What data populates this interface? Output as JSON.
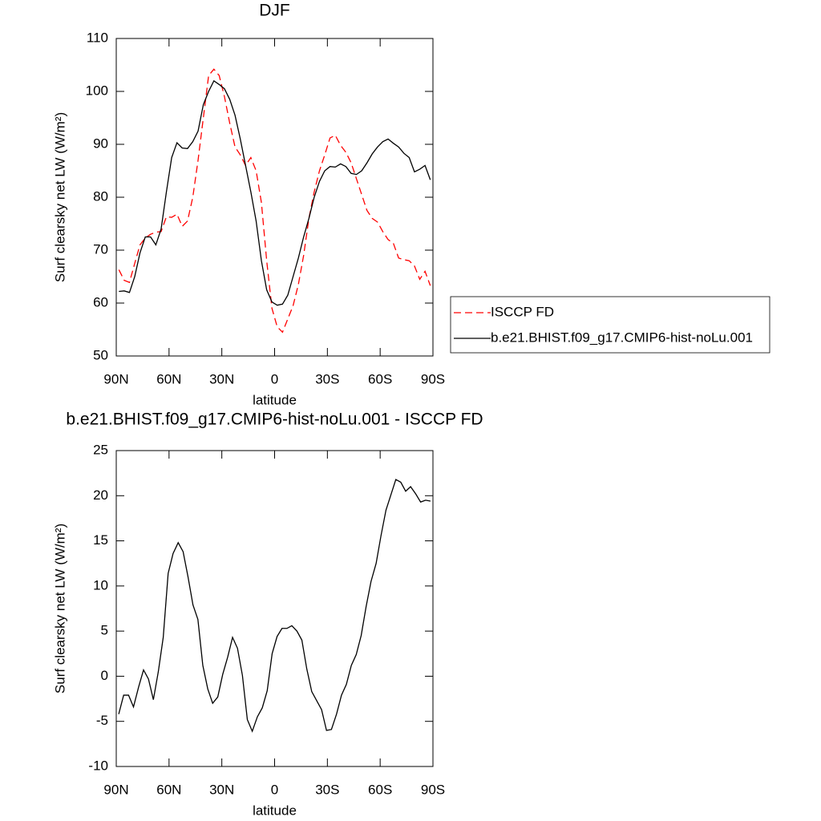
{
  "chart_data": [
    {
      "type": "line",
      "title": "DJF",
      "xlabel": "latitude",
      "ylabel": "Surf clearsky net LW (W/m²)",
      "x": [
        88.5,
        85.5,
        82.5,
        79.5,
        76.5,
        73.5,
        70.5,
        67.5,
        64.5,
        61.5,
        58.5,
        55.5,
        52.5,
        49.5,
        46.5,
        43.5,
        40.5,
        37.5,
        34.5,
        31.5,
        28.5,
        25.5,
        22.5,
        19.5,
        16.5,
        13.5,
        10.5,
        7.5,
        4.5,
        1.5,
        -1.5,
        -4.5,
        -7.5,
        -10.5,
        -13.5,
        -16.5,
        -19.5,
        -22.5,
        -25.5,
        -28.5,
        -31.5,
        -34.5,
        -37.5,
        -40.5,
        -43.5,
        -46.5,
        -49.5,
        -52.5,
        -55.5,
        -58.5,
        -61.5,
        -64.5,
        -67.5,
        -70.5,
        -73.5,
        -76.5,
        -79.5,
        -82.5,
        -85.5,
        -88.5
      ],
      "series": [
        {
          "name": "ISCCP FD",
          "color": "#ff0000",
          "dash": true,
          "values": [
            66.3,
            64.3,
            63.9,
            67.5,
            71,
            72.3,
            73,
            73.4,
            73.5,
            76.3,
            76.2,
            76.8,
            74.5,
            75.5,
            80,
            87,
            95,
            103,
            104.2,
            103,
            99,
            94,
            89.5,
            88,
            86,
            87.5,
            85,
            79,
            68,
            59,
            55.5,
            54.5,
            57,
            59.5,
            63.5,
            69,
            76,
            81,
            85,
            88,
            91.2,
            91.7,
            89.8,
            88.5,
            86.5,
            83.5,
            80.5,
            77.5,
            76,
            75.3,
            73.5,
            72,
            71.3,
            68.5,
            68.2,
            68,
            67,
            64.5,
            66,
            63.3
          ]
        },
        {
          "name": "b.e21.BHIST.f09_g17.CMIP6-hist-noLu.001",
          "color": "#000000",
          "dash": false,
          "values": [
            62.2,
            62.3,
            62,
            65,
            69.5,
            72.5,
            72.5,
            71,
            74,
            81,
            87.5,
            90.3,
            89.3,
            89.2,
            90.5,
            92.5,
            97.5,
            100,
            102,
            101.3,
            100.5,
            98.5,
            95.5,
            91,
            86,
            81,
            75.5,
            68,
            62.5,
            60.2,
            59.6,
            59.8,
            61.5,
            65,
            68.5,
            72.5,
            76,
            80,
            83,
            85,
            85.8,
            85.7,
            86.3,
            85.8,
            84.5,
            84.3,
            85,
            86.5,
            88.2,
            89.5,
            90.5,
            91,
            90.2,
            89.5,
            88.3,
            87.5,
            84.8,
            85.3,
            86,
            83.3
          ]
        }
      ],
      "xlim": [
        90,
        -90
      ],
      "ylim": [
        50,
        110
      ],
      "xticks": [
        {
          "value": 90,
          "label": "90N"
        },
        {
          "value": 60,
          "label": "60N"
        },
        {
          "value": 30,
          "label": "30N"
        },
        0,
        {
          "value": -30,
          "label": "30S"
        },
        {
          "value": -60,
          "label": "60S"
        },
        {
          "value": -90,
          "label": "90S"
        }
      ],
      "yticks": [
        50,
        60,
        70,
        80,
        90,
        100,
        110
      ],
      "legend": "right"
    },
    {
      "type": "line",
      "title": "b.e21.BHIST.f09_g17.CMIP6-hist-noLu.001 - ISCCP FD",
      "xlabel": "latitude",
      "ylabel": "Surf clearsky net LW (W/m²)",
      "x": [
        88.6,
        85.8,
        83.0,
        80.2,
        77.3,
        74.5,
        71.7,
        68.9,
        66.1,
        63.3,
        60.5,
        57.7,
        54.8,
        52.0,
        49.2,
        46.4,
        43.6,
        40.8,
        38.0,
        35.2,
        32.3,
        29.5,
        26.7,
        23.9,
        21.1,
        18.3,
        15.5,
        12.7,
        9.8,
        7.0,
        4.2,
        1.4,
        -1.4,
        -4.2,
        -7.0,
        -9.8,
        -12.7,
        -15.5,
        -18.3,
        -21.1,
        -23.9,
        -26.7,
        -29.5,
        -32.3,
        -35.2,
        -38.0,
        -40.8,
        -43.6,
        -46.4,
        -49.2,
        -52.0,
        -54.8,
        -57.7,
        -60.5,
        -63.3,
        -66.1,
        -68.9,
        -71.7,
        -74.5,
        -77.3,
        -80.2,
        -83.0,
        -85.8,
        -88.6
      ],
      "series": [
        {
          "color": "#000000",
          "dash": false,
          "values": [
            -4.2,
            -2.1,
            -2.1,
            -3.4,
            -1.2,
            0.7,
            -0.3,
            -2.6,
            0.5,
            4.3,
            11.4,
            13.6,
            14.8,
            13.8,
            11,
            7.9,
            6.3,
            1.2,
            -1.4,
            -3.0,
            -2.3,
            0.2,
            2.1,
            4.3,
            3.1,
            0.1,
            -4.8,
            -6.1,
            -4.5,
            -3.5,
            -1.6,
            2.5,
            4.4,
            5.3,
            5.3,
            5.6,
            5,
            4,
            0.8,
            -1.7,
            -2.7,
            -3.7,
            -6,
            -5.9,
            -4.2,
            -2.1,
            -0.9,
            1.2,
            2.4,
            4.5,
            7.7,
            10.5,
            12.5,
            15.6,
            18.4,
            20.1,
            21.8,
            21.5,
            20.5,
            21,
            20.2,
            19.3,
            19.5,
            19.4
          ]
        }
      ],
      "xlim": [
        90,
        -90
      ],
      "ylim": [
        -10,
        25
      ],
      "xticks": [
        {
          "value": 90,
          "label": "90N"
        },
        {
          "value": 60,
          "label": "60N"
        },
        {
          "value": 30,
          "label": "30N"
        },
        0,
        {
          "value": -30,
          "label": "30S"
        },
        {
          "value": -60,
          "label": "60S"
        },
        {
          "value": -90,
          "label": "90S"
        }
      ],
      "yticks": [
        -10,
        -5,
        0,
        5,
        10,
        15,
        20,
        25
      ]
    }
  ]
}
